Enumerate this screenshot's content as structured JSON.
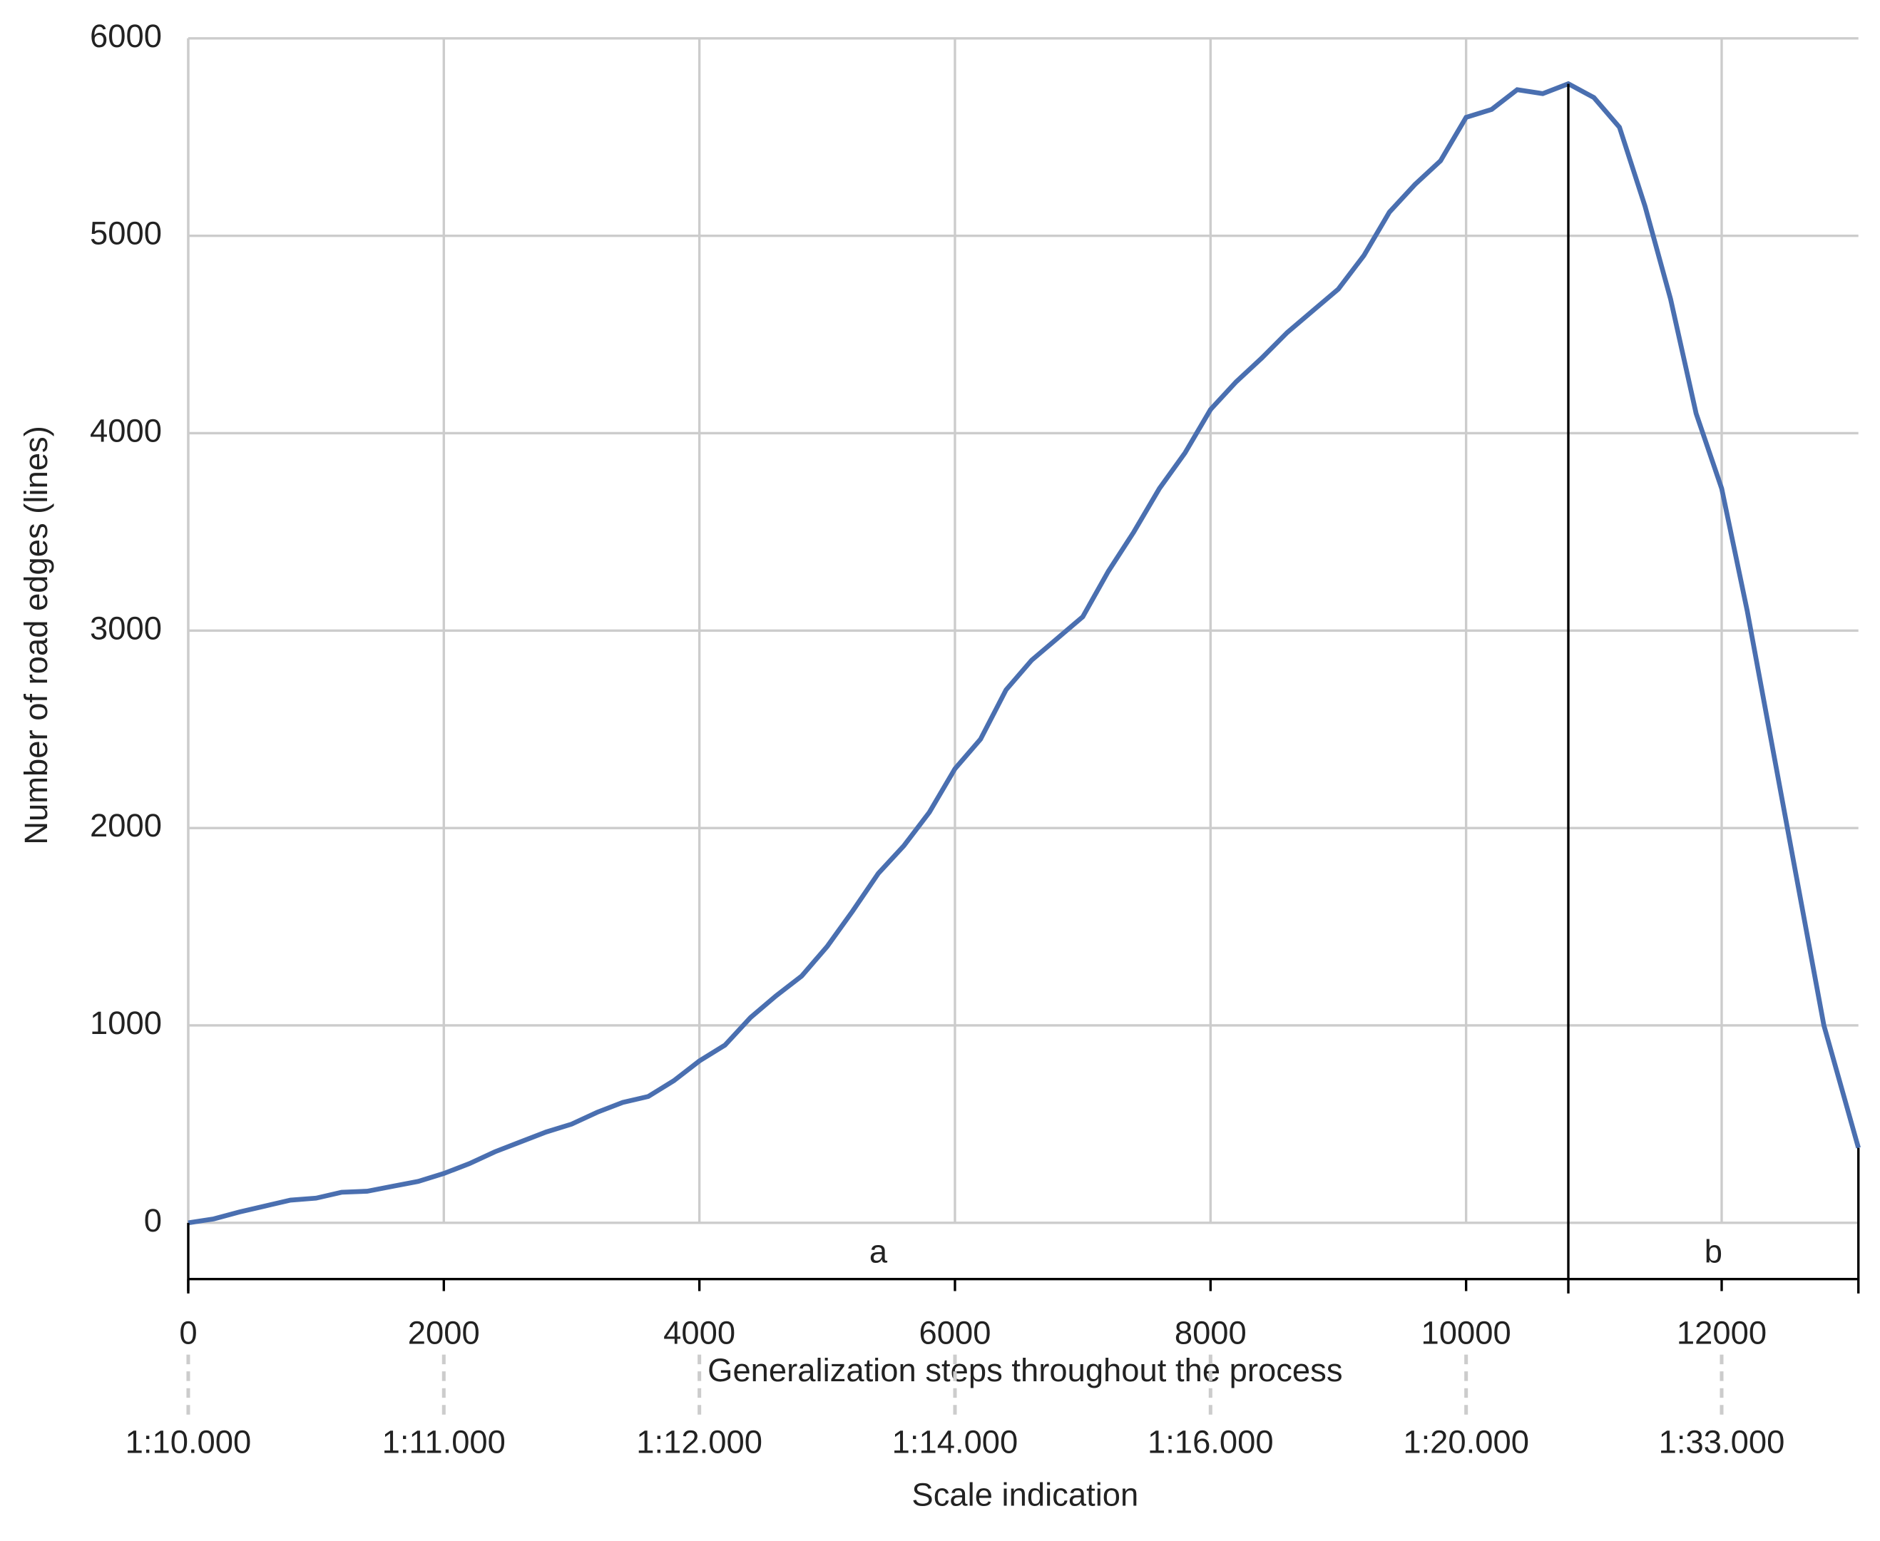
{
  "chart_data": {
    "type": "line",
    "xlabel": "Generalization steps throughout the process",
    "ylabel": "Number of road edges (lines)",
    "xlim": [
      0,
      13070
    ],
    "ylim": [
      -285,
      6000
    ],
    "xticks": [
      0,
      2000,
      4000,
      6000,
      8000,
      10000,
      12000
    ],
    "yticks": [
      0,
      1000,
      2000,
      3000,
      4000,
      5000,
      6000
    ],
    "grid": true,
    "series": [
      {
        "color": "#4a6fb0",
        "x": [
          0,
          200,
          400,
          600,
          800,
          1000,
          1200,
          1400,
          1600,
          1800,
          2000,
          2200,
          2400,
          2600,
          2800,
          3000,
          3200,
          3400,
          3600,
          3800,
          4000,
          4200,
          4400,
          4600,
          4800,
          5000,
          5200,
          5400,
          5600,
          5800,
          6000,
          6200,
          6400,
          6600,
          6800,
          7000,
          7200,
          7400,
          7600,
          7800,
          8000,
          8200,
          8400,
          8600,
          8800,
          9000,
          9200,
          9400,
          9600,
          9800,
          10000,
          10200,
          10400,
          10600,
          10800,
          11000,
          11200,
          11400,
          11600,
          11800,
          12000,
          12200,
          12400,
          12600,
          12800,
          13070
        ],
        "values": [
          0,
          20,
          55,
          85,
          115,
          125,
          155,
          160,
          185,
          210,
          250,
          300,
          360,
          410,
          460,
          500,
          560,
          610,
          640,
          720,
          820,
          900,
          1040,
          1150,
          1250,
          1400,
          1580,
          1770,
          1910,
          2080,
          2300,
          2450,
          2700,
          2850,
          2960,
          3070,
          3300,
          3500,
          3720,
          3900,
          4120,
          4260,
          4380,
          4510,
          4620,
          4730,
          4900,
          5120,
          5260,
          5380,
          5600,
          5640,
          5740,
          5720,
          5770,
          5700,
          5550,
          5150,
          4680,
          4100,
          3720,
          3100,
          2400,
          1700,
          1000,
          380
        ]
      }
    ],
    "segments": [
      {
        "label": "a",
        "start": 0,
        "end": 10800
      },
      {
        "label": "b",
        "start": 10800,
        "end": 13070
      }
    ],
    "scale_axis": {
      "label": "Scale indication",
      "ticks": [
        {
          "value": 0,
          "label": "1:10.000"
        },
        {
          "value": 2000,
          "label": "1:11.000"
        },
        {
          "value": 4000,
          "label": "1:12.000"
        },
        {
          "value": 6000,
          "label": "1:14.000"
        },
        {
          "value": 8000,
          "label": "1:16.000"
        },
        {
          "value": 10000,
          "label": "1:20.000"
        },
        {
          "value": 12000,
          "label": "1:33.000"
        }
      ]
    }
  }
}
